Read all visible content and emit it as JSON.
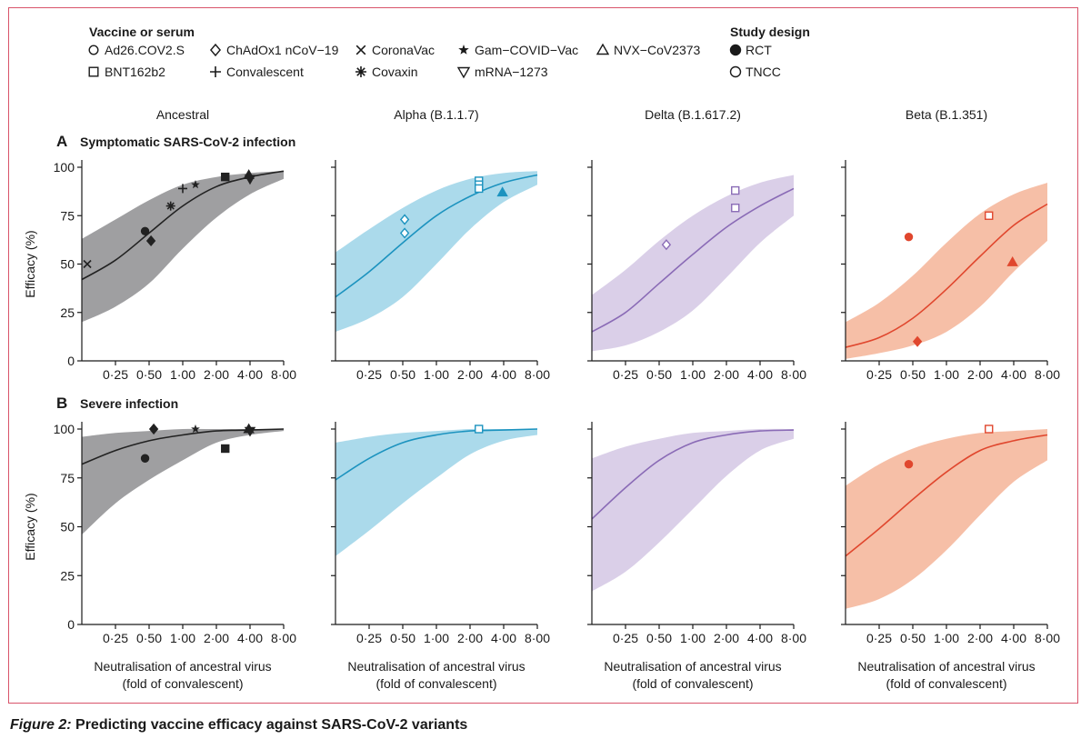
{
  "legend": {
    "vaccine_title": "Vaccine or serum",
    "vaccines": [
      {
        "label": "Ad26.COV2.S",
        "marker": "circle"
      },
      {
        "label": "ChAdOx1 nCoV−19",
        "marker": "diamond"
      },
      {
        "label": "CoronaVac",
        "marker": "x"
      },
      {
        "label": "Gam−COVID−Vac",
        "marker": "star5"
      },
      {
        "label": "NVX−CoV2373",
        "marker": "triangle-up"
      },
      {
        "label": "BNT162b2",
        "marker": "square"
      },
      {
        "label": "Convalescent",
        "marker": "plus"
      },
      {
        "label": "Covaxin",
        "marker": "asterisk"
      },
      {
        "label": "mRNA−1273",
        "marker": "triangle-down"
      }
    ],
    "design_title": "Study design",
    "designs": [
      {
        "label": "RCT",
        "fill": "filled"
      },
      {
        "label": "TNCC",
        "fill": "open"
      }
    ]
  },
  "columns": [
    {
      "label": "Ancestral",
      "color": "#222222",
      "band": "#9a9a9c"
    },
    {
      "label": "Alpha (B.1.1.7)",
      "color": "#1c93bf",
      "band": "#a7d8ea"
    },
    {
      "label": "Delta (B.1.617.2)",
      "color": "#8a6bb6",
      "band": "#d8cce7"
    },
    {
      "label": "Beta (B.1.351)",
      "color": "#e0472e",
      "band": "#f5bca2"
    }
  ],
  "rows": [
    {
      "letter": "A",
      "title": "Symptomatic SARS-CoV-2 infection"
    },
    {
      "letter": "B",
      "title": "Severe infection"
    }
  ],
  "ylabel": "Efficacy (%)",
  "xlabel_line1": "Neutralisation of ancestral virus",
  "xlabel_line2": "(fold of convalescent)",
  "xticks": [
    "0·25",
    "0·50",
    "1·00",
    "2·00",
    "4·00",
    "8·00"
  ],
  "yticks": [
    "0",
    "25",
    "50",
    "75",
    "100"
  ],
  "caption": {
    "label": "Figure 2:",
    "title": "Predicting vaccine efficacy against SARS-CoV-2 variants"
  },
  "chart_data": {
    "type": "scatter",
    "x_scale": "log2",
    "xlim": [
      0.125,
      8
    ],
    "ylim": [
      0,
      100
    ],
    "panels": [
      {
        "row": "A",
        "column": "Ancestral",
        "curve": {
          "x": [
            0.125,
            0.25,
            0.5,
            1,
            2,
            4,
            8
          ],
          "y": [
            42,
            52,
            66,
            80,
            90,
            95,
            98
          ]
        },
        "band": {
          "upper": [
            63,
            73,
            83,
            91,
            95,
            97,
            98
          ],
          "lower": [
            20,
            28,
            40,
            58,
            74,
            86,
            94
          ]
        },
        "points": [
          {
            "vaccine": "CoronaVac",
            "x": 0.14,
            "y": 50,
            "design": "RCT"
          },
          {
            "vaccine": "Ad26.COV2.S",
            "x": 0.46,
            "y": 67,
            "design": "RCT"
          },
          {
            "vaccine": "ChAdOx1 nCoV−19",
            "x": 0.52,
            "y": 62,
            "design": "RCT"
          },
          {
            "vaccine": "Covaxin",
            "x": 0.78,
            "y": 80,
            "design": "RCT"
          },
          {
            "vaccine": "Convalescent",
            "x": 1.0,
            "y": 89,
            "design": "RCT"
          },
          {
            "vaccine": "Gam−COVID−Vac",
            "x": 1.3,
            "y": 91,
            "design": "RCT"
          },
          {
            "vaccine": "BNT162b2",
            "x": 2.4,
            "y": 95,
            "design": "RCT"
          },
          {
            "vaccine": "mRNA−1273",
            "x": 4.0,
            "y": 94,
            "design": "RCT"
          },
          {
            "vaccine": "NVX−CoV2373",
            "x": 3.9,
            "y": 96,
            "design": "RCT"
          }
        ]
      },
      {
        "row": "A",
        "column": "Alpha (B.1.1.7)",
        "curve": {
          "x": [
            0.125,
            0.25,
            0.5,
            1,
            2,
            4,
            8
          ],
          "y": [
            33,
            46,
            61,
            75,
            85,
            92,
            96
          ]
        },
        "band": {
          "upper": [
            56,
            68,
            79,
            88,
            94,
            97,
            98
          ],
          "lower": [
            15,
            22,
            33,
            50,
            68,
            82,
            91
          ]
        },
        "points": [
          {
            "vaccine": "ChAdOx1 nCoV−19",
            "x": 0.52,
            "y": 73,
            "design": "TNCC"
          },
          {
            "vaccine": "ChAdOx1 nCoV−19",
            "x": 0.52,
            "y": 66,
            "design": "TNCC"
          },
          {
            "vaccine": "BNT162b2",
            "x": 2.4,
            "y": 93,
            "design": "TNCC"
          },
          {
            "vaccine": "BNT162b2",
            "x": 2.4,
            "y": 91,
            "design": "TNCC"
          },
          {
            "vaccine": "BNT162b2",
            "x": 2.4,
            "y": 89,
            "design": "TNCC"
          },
          {
            "vaccine": "NVX−CoV2373",
            "x": 3.9,
            "y": 87,
            "design": "RCT"
          }
        ]
      },
      {
        "row": "A",
        "column": "Delta (B.1.617.2)",
        "curve": {
          "x": [
            0.125,
            0.25,
            0.5,
            1,
            2,
            4,
            8
          ],
          "y": [
            15,
            25,
            40,
            55,
            69,
            80,
            89
          ]
        },
        "band": {
          "upper": [
            34,
            47,
            62,
            75,
            85,
            92,
            96
          ],
          "lower": [
            5,
            8,
            15,
            26,
            43,
            61,
            75
          ]
        },
        "points": [
          {
            "vaccine": "ChAdOx1 nCoV−19",
            "x": 0.58,
            "y": 60,
            "design": "TNCC"
          },
          {
            "vaccine": "BNT162b2",
            "x": 2.4,
            "y": 88,
            "design": "TNCC"
          },
          {
            "vaccine": "BNT162b2",
            "x": 2.4,
            "y": 79,
            "design": "TNCC"
          }
        ]
      },
      {
        "row": "A",
        "column": "Beta (B.1.351)",
        "curve": {
          "x": [
            0.125,
            0.25,
            0.5,
            1,
            2,
            4,
            8
          ],
          "y": [
            7,
            12,
            22,
            37,
            54,
            70,
            81
          ]
        },
        "band": {
          "upper": [
            20,
            30,
            44,
            61,
            76,
            86,
            92
          ],
          "lower": [
            1,
            4,
            8,
            15,
            28,
            46,
            62
          ]
        },
        "points": [
          {
            "vaccine": "Ad26.COV2.S",
            "x": 0.46,
            "y": 64,
            "design": "RCT"
          },
          {
            "vaccine": "ChAdOx1 nCoV−19",
            "x": 0.55,
            "y": 10,
            "design": "RCT"
          },
          {
            "vaccine": "BNT162b2",
            "x": 2.4,
            "y": 75,
            "design": "TNCC"
          },
          {
            "vaccine": "NVX−CoV2373",
            "x": 3.9,
            "y": 51,
            "design": "RCT"
          }
        ]
      },
      {
        "row": "B",
        "column": "Ancestral",
        "curve": {
          "x": [
            0.125,
            0.25,
            0.5,
            1,
            2,
            4,
            8
          ],
          "y": [
            82,
            89,
            94,
            97,
            99,
            99.5,
            100
          ]
        },
        "band": {
          "upper": [
            96,
            98,
            99,
            100,
            100,
            100,
            100
          ],
          "lower": [
            46,
            62,
            74,
            84,
            93,
            97,
            99
          ]
        },
        "points": [
          {
            "vaccine": "Ad26.COV2.S",
            "x": 0.46,
            "y": 85,
            "design": "RCT"
          },
          {
            "vaccine": "ChAdOx1 nCoV−19",
            "x": 0.55,
            "y": 100,
            "design": "RCT"
          },
          {
            "vaccine": "Gam−COVID−Vac",
            "x": 1.3,
            "y": 100,
            "design": "RCT"
          },
          {
            "vaccine": "BNT162b2",
            "x": 2.4,
            "y": 90,
            "design": "RCT"
          },
          {
            "vaccine": "mRNA−1273",
            "x": 4.0,
            "y": 99,
            "design": "RCT"
          },
          {
            "vaccine": "NVX−CoV2373",
            "x": 3.9,
            "y": 100,
            "design": "RCT"
          }
        ]
      },
      {
        "row": "B",
        "column": "Alpha (B.1.1.7)",
        "curve": {
          "x": [
            0.125,
            0.25,
            0.5,
            1,
            2,
            4,
            8
          ],
          "y": [
            74,
            85,
            93,
            97,
            99,
            99.5,
            100
          ]
        },
        "band": {
          "upper": [
            93,
            96,
            98,
            99,
            100,
            100,
            100
          ],
          "lower": [
            35,
            48,
            62,
            75,
            87,
            94,
            97
          ]
        },
        "points": [
          {
            "vaccine": "BNT162b2",
            "x": 2.4,
            "y": 100,
            "design": "TNCC"
          }
        ]
      },
      {
        "row": "B",
        "column": "Delta (B.1.617.2)",
        "curve": {
          "x": [
            0.125,
            0.25,
            0.5,
            1,
            2,
            4,
            8
          ],
          "y": [
            54,
            70,
            84,
            93,
            97,
            99,
            99.5
          ]
        },
        "band": {
          "upper": [
            85,
            91,
            95,
            98,
            99,
            100,
            100
          ],
          "lower": [
            17,
            27,
            42,
            59,
            76,
            89,
            95
          ]
        },
        "points": []
      },
      {
        "row": "B",
        "column": "Beta (B.1.351)",
        "curve": {
          "x": [
            0.125,
            0.25,
            0.5,
            1,
            2,
            4,
            8
          ],
          "y": [
            35,
            49,
            64,
            78,
            89,
            94,
            97
          ]
        },
        "band": {
          "upper": [
            71,
            82,
            90,
            95,
            98,
            99,
            100
          ],
          "lower": [
            8,
            13,
            23,
            38,
            56,
            73,
            84
          ]
        },
        "points": [
          {
            "vaccine": "Ad26.COV2.S",
            "x": 0.46,
            "y": 82,
            "design": "RCT"
          },
          {
            "vaccine": "BNT162b2",
            "x": 2.4,
            "y": 100,
            "design": "TNCC"
          }
        ]
      }
    ]
  }
}
